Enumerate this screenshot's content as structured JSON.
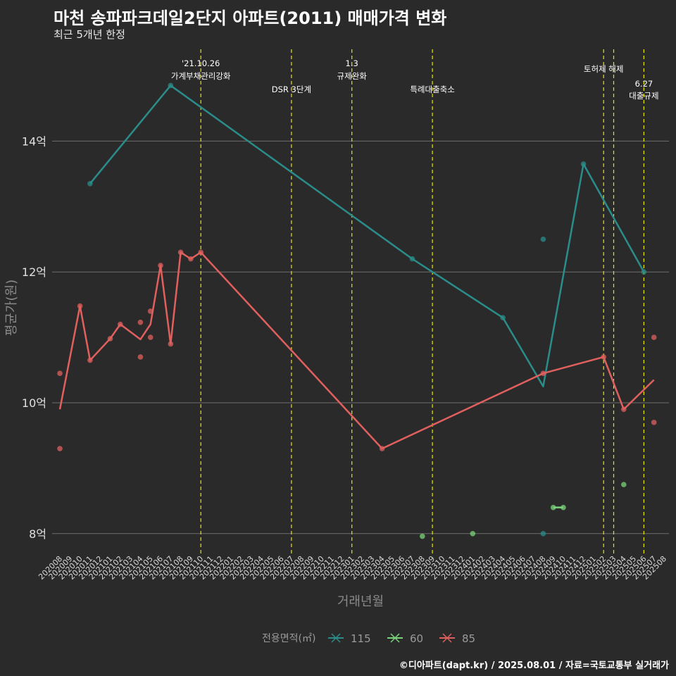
{
  "chart_data": {
    "type": "line",
    "title": "마천 송파파크데일2단지 아파트(2011) 매매가격 변화",
    "subtitle": "최근 5개년 한정",
    "xlabel": "거래년월",
    "ylabel": "평균가(원)",
    "caption": "©디아파트(dapt.kr) / 2025.08.01 / 자료=국토교통부 실거래가",
    "legend_title": "전용면적(㎡)",
    "legend_position": "bottom",
    "ylim": [
      7.7,
      15.3
    ],
    "y_ticks": [
      {
        "value": 8,
        "label": "8억"
      },
      {
        "value": 10,
        "label": "10억"
      },
      {
        "value": 12,
        "label": "12억"
      },
      {
        "value": 14,
        "label": "14억"
      }
    ],
    "x_categories": [
      "202008",
      "202009",
      "202010",
      "202011",
      "202012",
      "202101",
      "202102",
      "202103",
      "202104",
      "202105",
      "202106",
      "202107",
      "202108",
      "202109",
      "202110",
      "202111",
      "202112",
      "202201",
      "202202",
      "202203",
      "202204",
      "202205",
      "202206",
      "202207",
      "202208",
      "202209",
      "202210",
      "202211",
      "202212",
      "202301",
      "202302",
      "202303",
      "202304",
      "202305",
      "202306",
      "202307",
      "202308",
      "202309",
      "202310",
      "202311",
      "202312",
      "202401",
      "202402",
      "202403",
      "202404",
      "202405",
      "202406",
      "202407",
      "202408",
      "202409",
      "202410",
      "202411",
      "202412",
      "202501",
      "202502",
      "202503",
      "202504",
      "202505",
      "202506",
      "202507",
      "202508"
    ],
    "grid": true,
    "series": [
      {
        "name": "115",
        "color": "#2a8d8a",
        "line": [
          [
            "202011",
            13.35
          ],
          [
            "202107",
            14.85
          ],
          [
            "202307",
            12.2
          ],
          [
            "202404",
            11.3
          ],
          [
            "202408",
            10.25
          ],
          [
            "202412",
            13.65
          ],
          [
            "202506",
            12.0
          ]
        ],
        "points": [
          [
            "202011",
            13.35
          ],
          [
            "202107",
            14.85
          ],
          [
            "202307",
            12.2
          ],
          [
            "202404",
            11.3
          ],
          [
            "202408",
            12.5
          ],
          [
            "202408",
            8.0
          ],
          [
            "202412",
            13.65
          ],
          [
            "202506",
            12.0
          ]
        ]
      },
      {
        "name": "60",
        "color": "#79d479",
        "line": [
          [
            "202409",
            8.4
          ],
          [
            "202410",
            8.4
          ]
        ],
        "points": [
          [
            "202308",
            7.96
          ],
          [
            "202401",
            8.0
          ],
          [
            "202409",
            8.4
          ],
          [
            "202410",
            8.4
          ],
          [
            "202504",
            8.75
          ]
        ]
      },
      {
        "name": "85",
        "color": "#e0605e",
        "line": [
          [
            "202008",
            9.9
          ],
          [
            "202010",
            11.48
          ],
          [
            "202011",
            10.65
          ],
          [
            "202101",
            10.98
          ],
          [
            "202102",
            11.2
          ],
          [
            "202104",
            10.97
          ],
          [
            "202105",
            11.2
          ],
          [
            "202106",
            12.1
          ],
          [
            "202107",
            10.9
          ],
          [
            "202108",
            12.3
          ],
          [
            "202109",
            12.2
          ],
          [
            "202110",
            12.3
          ],
          [
            "202304",
            9.3
          ],
          [
            "202408",
            10.45
          ],
          [
            "202502",
            10.7
          ],
          [
            "202504",
            9.9
          ],
          [
            "202507",
            10.35
          ]
        ],
        "points": [
          [
            "202008",
            10.45
          ],
          [
            "202008",
            9.3
          ],
          [
            "202010",
            11.48
          ],
          [
            "202011",
            10.65
          ],
          [
            "202101",
            10.98
          ],
          [
            "202102",
            11.2
          ],
          [
            "202104",
            11.23
          ],
          [
            "202104",
            10.7
          ],
          [
            "202105",
            11.0
          ],
          [
            "202105",
            11.4
          ],
          [
            "202106",
            12.1
          ],
          [
            "202107",
            10.9
          ],
          [
            "202108",
            12.3
          ],
          [
            "202109",
            12.2
          ],
          [
            "202110",
            12.3
          ],
          [
            "202304",
            9.3
          ],
          [
            "202408",
            10.45
          ],
          [
            "202502",
            10.7
          ],
          [
            "202504",
            9.9
          ],
          [
            "202507",
            11.0
          ],
          [
            "202507",
            9.7
          ]
        ]
      }
    ],
    "events": [
      {
        "x": "202110",
        "label": [
          "'21.10.26",
          "가계부채관리강화"
        ],
        "label_level": 0
      },
      {
        "x": "202207",
        "label": [
          "DSR 3단계"
        ],
        "label_level": 1
      },
      {
        "x": "202301",
        "label": [
          "1.3",
          "규제완화"
        ],
        "label_level": 0
      },
      {
        "x": "202309",
        "label": [
          "특례대출축소"
        ],
        "label_level": 1
      },
      {
        "x": "202502",
        "label": [
          "토허제 해제"
        ],
        "label_level": 0
      },
      {
        "x": "202503",
        "label": [],
        "label_level": 0
      },
      {
        "x": "202506",
        "label": [
          "6.27",
          "대출규제"
        ],
        "label_level": 1
      }
    ],
    "event_line_color": "#e6e600"
  }
}
